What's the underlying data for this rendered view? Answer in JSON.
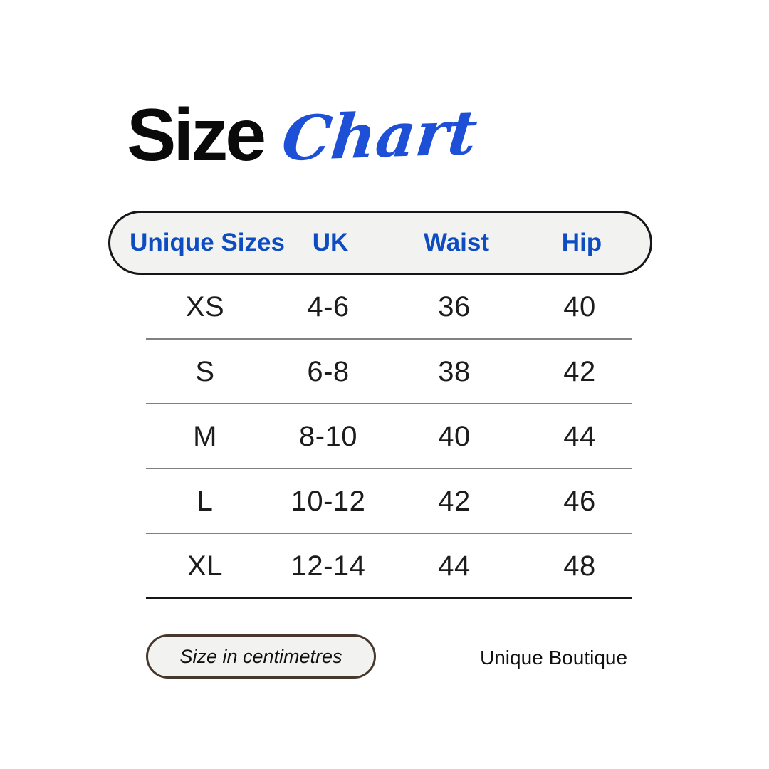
{
  "title": {
    "word_black": "Size",
    "word_script": "Chart"
  },
  "chart_data": {
    "type": "table",
    "title": "Size Chart",
    "columns": [
      "Unique Sizes",
      "UK",
      "Waist",
      "Hip"
    ],
    "rows": [
      [
        "XS",
        "4-6",
        "36",
        "40"
      ],
      [
        "S",
        "6-8",
        "38",
        "42"
      ],
      [
        "M",
        "8-10",
        "40",
        "44"
      ],
      [
        "L",
        "10-12",
        "42",
        "46"
      ],
      [
        "XL",
        "12-14",
        "44",
        "48"
      ]
    ],
    "units_note": "Size in centimetres",
    "layout_hints": {
      "header_style": "rounded pill with blue bold labels",
      "row_dividers": "thin gray horizontal lines, black line under last row",
      "grid": "no vertical lines"
    }
  },
  "footer": {
    "unit_note": "Size in centimetres",
    "brand": "Unique Boutique"
  },
  "colors": {
    "background": "#ffffff",
    "title_black": "#0a0a0a",
    "script_blue": "#1d50d6",
    "header_text_blue": "#0d4cc1",
    "pill_background": "#f2f2f0",
    "pill_border": "#161616",
    "note_pill_border": "#47382e",
    "row_divider": "#818181",
    "table_bottom_line": "#161616",
    "body_text": "#1c1c1c"
  }
}
